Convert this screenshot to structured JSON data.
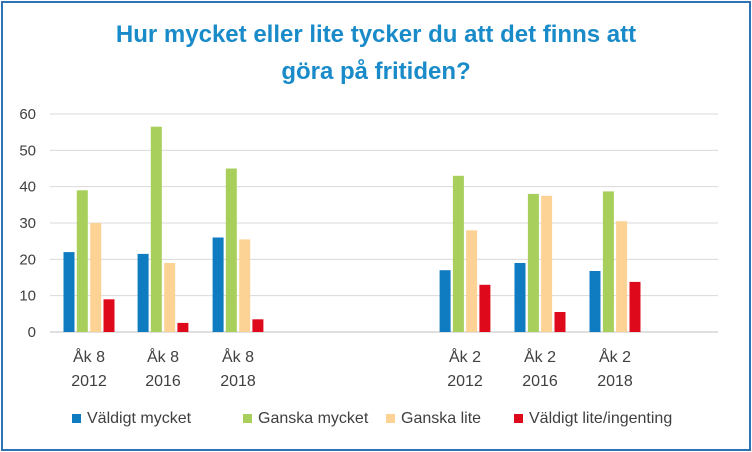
{
  "chart_data": {
    "type": "bar",
    "title_line1": "Hur mycket eller lite tycker du att det finns att",
    "title_line2": "göra på fritiden?",
    "xlabel": "",
    "ylabel": "",
    "ylim": [
      0,
      60
    ],
    "yticks": [
      "0",
      "10",
      "20",
      "30",
      "40",
      "50",
      "60"
    ],
    "grid": true,
    "legend_position": "bottom",
    "groups": [
      {
        "line1": "Åk 8",
        "line2": "2012"
      },
      {
        "line1": "Åk 8",
        "line2": "2016"
      },
      {
        "line1": "Åk 8",
        "line2": "2018"
      },
      {
        "line1": "Åk 2",
        "line2": "2012"
      },
      {
        "line1": "Åk 2",
        "line2": "2016"
      },
      {
        "line1": "Åk 2",
        "line2": "2018"
      }
    ],
    "series": [
      {
        "name": "Väldigt mycket",
        "color": "#0f7bc0",
        "values": [
          22,
          21.5,
          26,
          17,
          19,
          16.8
        ]
      },
      {
        "name": "Ganska mycket",
        "color": "#a8cf5c",
        "values": [
          39,
          56.5,
          45,
          43,
          38,
          38.7
        ]
      },
      {
        "name": "Ganska lite",
        "color": "#fcd394",
        "values": [
          30,
          19,
          25.5,
          28,
          37.5,
          30.5
        ]
      },
      {
        "name": "Väldigt lite/ingenting",
        "color": "#de0a1c",
        "values": [
          9,
          2.5,
          3.5,
          13,
          5.5,
          13.8
        ]
      }
    ]
  }
}
